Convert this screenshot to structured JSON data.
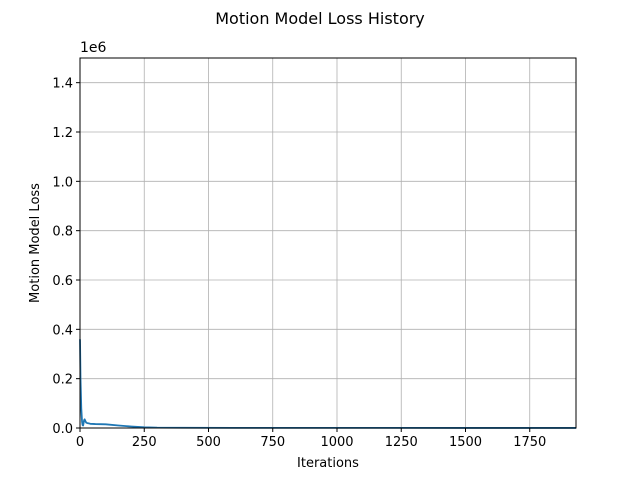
{
  "chart_data": {
    "type": "line",
    "title": "Motion Model Loss History",
    "xlabel": "Iterations",
    "ylabel": "Motion Model Loss",
    "y_offset_label": "1e6",
    "xlim": [
      0,
      1930
    ],
    "ylim": [
      0,
      1.5
    ],
    "y_scale_factor": 1000000,
    "grid": true,
    "x_ticks": [
      0,
      250,
      500,
      750,
      1000,
      1250,
      1500,
      1750
    ],
    "y_ticks": [
      0.0,
      0.2,
      0.4,
      0.6,
      0.8,
      1.0,
      1.2,
      1.4
    ],
    "x_tick_labels": [
      "0",
      "250",
      "500",
      "750",
      "1000",
      "1250",
      "1500",
      "1750"
    ],
    "y_tick_labels": [
      "0.0",
      "0.2",
      "0.4",
      "0.6",
      "0.8",
      "1.0",
      "1.2",
      "1.4"
    ],
    "series": [
      {
        "color": "#1f77b4",
        "x": [
          0,
          2,
          5,
          8,
          10,
          12,
          14,
          16,
          18,
          20,
          24,
          28,
          32,
          40,
          60,
          100,
          150,
          200,
          250,
          300,
          400,
          600,
          1000,
          1500,
          1930
        ],
        "y": [
          0.36,
          0.2,
          0.08,
          0.025,
          0.012,
          0.01,
          0.02,
          0.032,
          0.035,
          0.03,
          0.022,
          0.02,
          0.019,
          0.017,
          0.016,
          0.015,
          0.01,
          0.006,
          0.003,
          0.0015,
          0.001,
          0.0006,
          0.0004,
          0.0003,
          0.0002
        ]
      }
    ]
  }
}
